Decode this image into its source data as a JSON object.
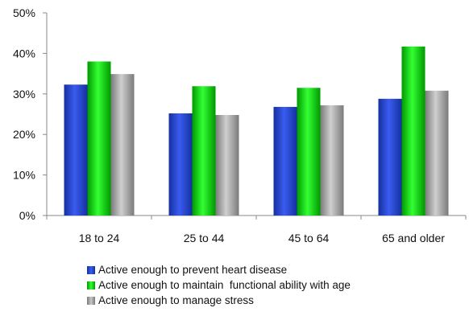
{
  "chart_data": {
    "type": "bar",
    "categories": [
      "18 to 24",
      "25 to 44",
      "45 to 64",
      "65 and older"
    ],
    "series": [
      {
        "name": "Active enough to prevent heart disease",
        "values": [
          32.3,
          25.2,
          26.8,
          28.8
        ],
        "color": "#2440c8"
      },
      {
        "name": "Active enough to maintain  functional ability with age",
        "values": [
          38.0,
          31.9,
          31.5,
          41.7
        ],
        "color": "#00cc00"
      },
      {
        "name": "Active enough to manage stress",
        "values": [
          34.9,
          24.8,
          27.2,
          30.8
        ],
        "color": "#9a9a9a"
      }
    ],
    "y_ticks": [
      "0%",
      "10%",
      "20%",
      "30%",
      "40%",
      "50%"
    ],
    "ylim": [
      0,
      50
    ],
    "grid": false,
    "legend_position": "bottom"
  }
}
